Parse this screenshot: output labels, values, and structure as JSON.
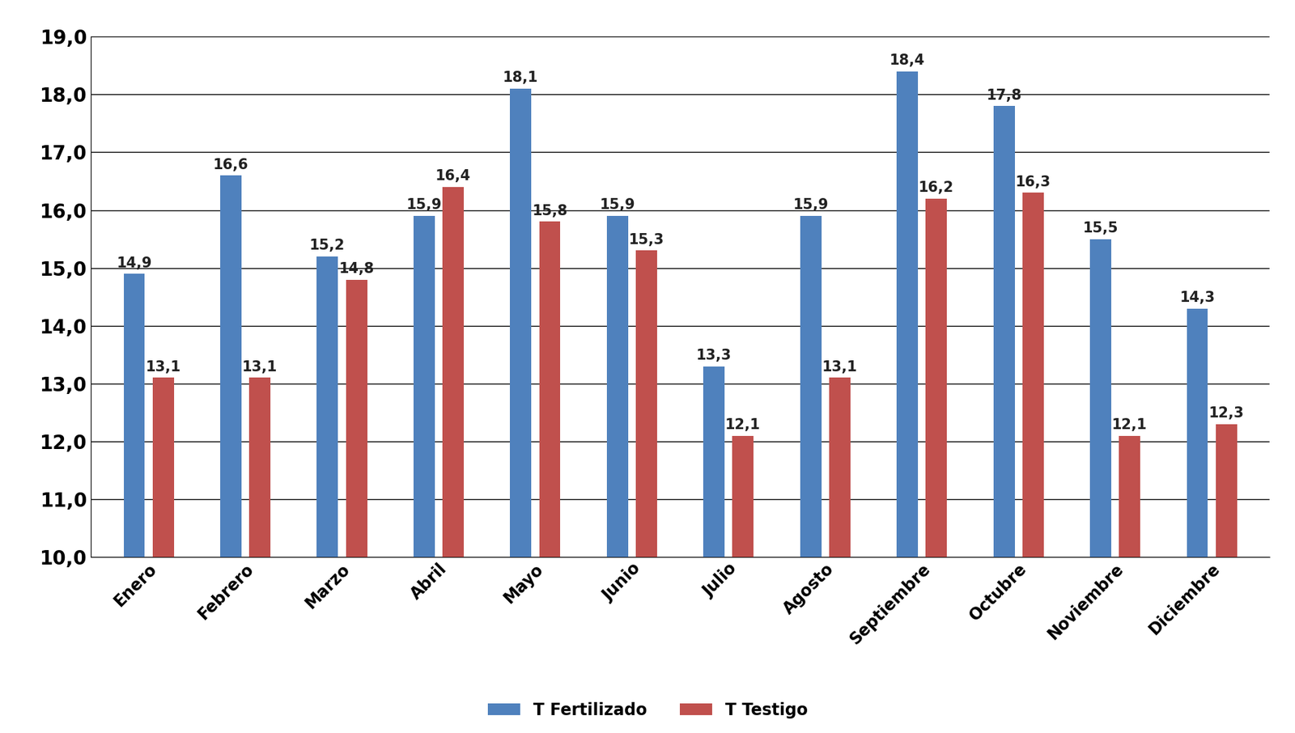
{
  "chart_data": {
    "type": "bar",
    "categories": [
      "Enero",
      "Febrero",
      "Marzo",
      "Abril",
      "Mayo",
      "Junio",
      "Julio",
      "Agosto",
      "Septiembre",
      "Octubre",
      "Noviembre",
      "Diciembre"
    ],
    "series": [
      {
        "name": "T Fertilizado",
        "color": "#4f81bd",
        "values": [
          14.9,
          16.6,
          15.2,
          15.9,
          18.1,
          15.9,
          13.3,
          15.9,
          18.4,
          17.8,
          15.5,
          14.3
        ],
        "value_labels": [
          "14,9",
          "16,6",
          "15,2",
          "15,9",
          "18,1",
          "15,9",
          "13,3",
          "15,9",
          "18,4",
          "17,8",
          "15,5",
          "14,3"
        ]
      },
      {
        "name": "T Testigo",
        "color": "#c0504d",
        "values": [
          13.1,
          13.1,
          14.8,
          16.4,
          15.8,
          15.3,
          12.1,
          13.1,
          16.2,
          16.3,
          12.1,
          12.3
        ],
        "value_labels": [
          "13,1",
          "13,1",
          "14,8",
          "16,4",
          "15,8",
          "15,3",
          "12,1",
          "13,1",
          "16,2",
          "16,3",
          "12,1",
          "12,3"
        ]
      }
    ],
    "ylim": [
      10,
      19
    ],
    "yticks": [
      {
        "value": 10,
        "label": "10,0"
      },
      {
        "value": 11,
        "label": "11,0"
      },
      {
        "value": 12,
        "label": "12,0"
      },
      {
        "value": 13,
        "label": "13,0"
      },
      {
        "value": 14,
        "label": "14,0"
      },
      {
        "value": 15,
        "label": "15,0"
      },
      {
        "value": 16,
        "label": "16,0"
      },
      {
        "value": 17,
        "label": "17,0"
      },
      {
        "value": 18,
        "label": "18,0"
      },
      {
        "value": 19,
        "label": "19,0"
      }
    ],
    "grid": true,
    "legend": "lower center",
    "data_labels": true
  }
}
